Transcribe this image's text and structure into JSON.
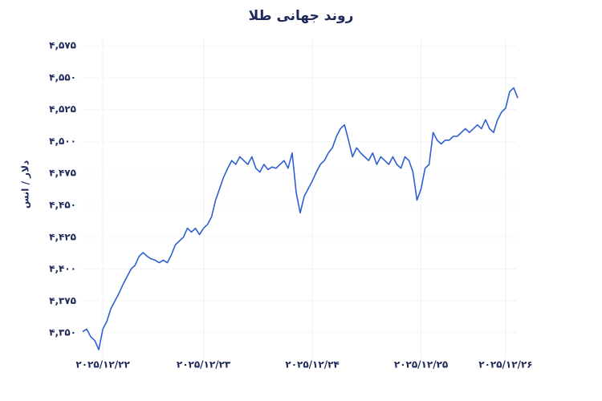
{
  "chart_data": {
    "type": "line",
    "title": "روند جهانی طلا",
    "y_label": "دلار / انس",
    "series": [
      {
        "name": "طلا",
        "color": "#2f5fd0",
        "values": [
          4351,
          4353,
          4347,
          4344,
          4337,
          4353,
          4359,
          4369,
          4375,
          4381,
          4388,
          4394,
          4400,
          4403,
          4410,
          4413,
          4410,
          4408,
          4407,
          4405,
          4407,
          4405,
          4411,
          4419,
          4422,
          4425,
          4432,
          4429,
          4432,
          4427,
          4432,
          4435,
          4441,
          4454,
          4463,
          4472,
          4479,
          4485,
          4482,
          4488,
          4485,
          4482,
          4488,
          4479,
          4476,
          4482,
          4478,
          4480,
          4479,
          4482,
          4485,
          4479,
          4491,
          4460,
          4444,
          4457,
          4463,
          4469,
          4476,
          4482,
          4485,
          4491,
          4495,
          4504,
          4510,
          4513,
          4501,
          4488,
          4495,
          4491,
          4488,
          4485,
          4491,
          4482,
          4488,
          4485,
          4482,
          4488,
          4482,
          4479,
          4488,
          4485,
          4476,
          4454,
          4463,
          4479,
          4482,
          4507,
          4501,
          4498,
          4501,
          4501,
          4504,
          4504,
          4507,
          4510,
          4507,
          4510,
          4513,
          4510,
          4517,
          4510,
          4507,
          4517,
          4523,
          4526,
          4539,
          4542,
          4534
        ]
      }
    ],
    "xticks": [
      {
        "value": 5,
        "label": "۲۰۲۵/۱۲/۲۲"
      },
      {
        "value": 30,
        "label": "۲۰۲۵/۱۲/۲۳"
      },
      {
        "value": 57,
        "label": "۲۰۲۵/۱۲/۲۴"
      },
      {
        "value": 84,
        "label": "۲۰۲۵/۱۲/۲۵"
      },
      {
        "value": 105,
        "label": "۲۰۲۵/۱۲/۲۶"
      }
    ],
    "ylim": [
      4330,
      4580
    ],
    "yticks": [
      {
        "value": 4350,
        "label": "۴,۳۵۰"
      },
      {
        "value": 4375,
        "label": "۴,۳۷۵"
      },
      {
        "value": 4400,
        "label": "۴,۴۰۰"
      },
      {
        "value": 4425,
        "label": "۴,۴۲۵"
      },
      {
        "value": 4450,
        "label": "۴,۴۵۰"
      },
      {
        "value": 4475,
        "label": "۴,۴۷۵"
      },
      {
        "value": 4500,
        "label": "۴,۵۰۰"
      },
      {
        "value": 4525,
        "label": "۴,۵۲۵"
      },
      {
        "value": 4550,
        "label": "۴,۵۵۰"
      },
      {
        "value": 4575,
        "label": "۴,۵۷۵"
      }
    ],
    "grid": true
  }
}
